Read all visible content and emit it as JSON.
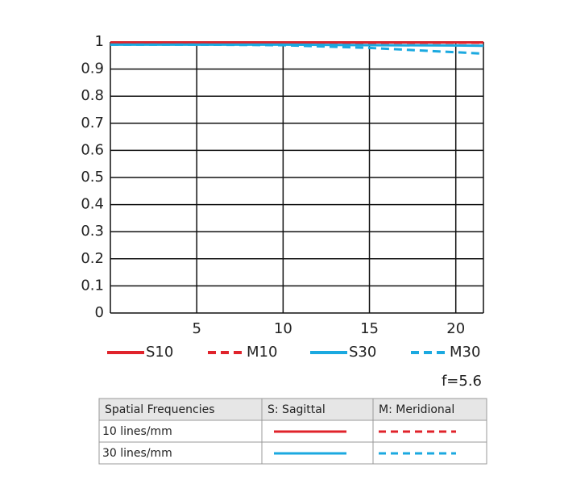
{
  "chart_data": {
    "type": "line",
    "x": [
      0,
      5,
      10,
      15,
      20,
      21.6
    ],
    "series": [
      {
        "name": "S10",
        "color": "#e0232b",
        "dashed": false,
        "values": [
          0.998,
          0.998,
          0.998,
          0.998,
          0.998,
          0.998
        ]
      },
      {
        "name": "M10",
        "color": "#e0232b",
        "dashed": true,
        "values": [
          0.997,
          0.997,
          0.997,
          0.997,
          0.997,
          0.997
        ]
      },
      {
        "name": "S30",
        "color": "#1ba9e0",
        "dashed": false,
        "values": [
          0.99,
          0.99,
          0.99,
          0.988,
          0.987,
          0.986
        ]
      },
      {
        "name": "M30",
        "color": "#1ba9e0",
        "dashed": true,
        "values": [
          0.99,
          0.99,
          0.988,
          0.978,
          0.962,
          0.957
        ]
      }
    ],
    "xlim": [
      0,
      21.6
    ],
    "xticks": [
      5,
      10,
      15,
      20
    ],
    "ylim": [
      0,
      1
    ],
    "yticks": [
      0,
      0.1,
      0.2,
      0.3,
      0.4,
      0.5,
      0.6,
      0.7,
      0.8,
      0.9,
      1
    ],
    "grid": true,
    "annotation": "f=5.6"
  },
  "table": {
    "header": [
      "Spatial Frequencies",
      "S: Sagittal",
      "M: Meridional"
    ],
    "rows": [
      [
        "10 lines/mm"
      ],
      [
        "30 lines/mm"
      ]
    ]
  }
}
